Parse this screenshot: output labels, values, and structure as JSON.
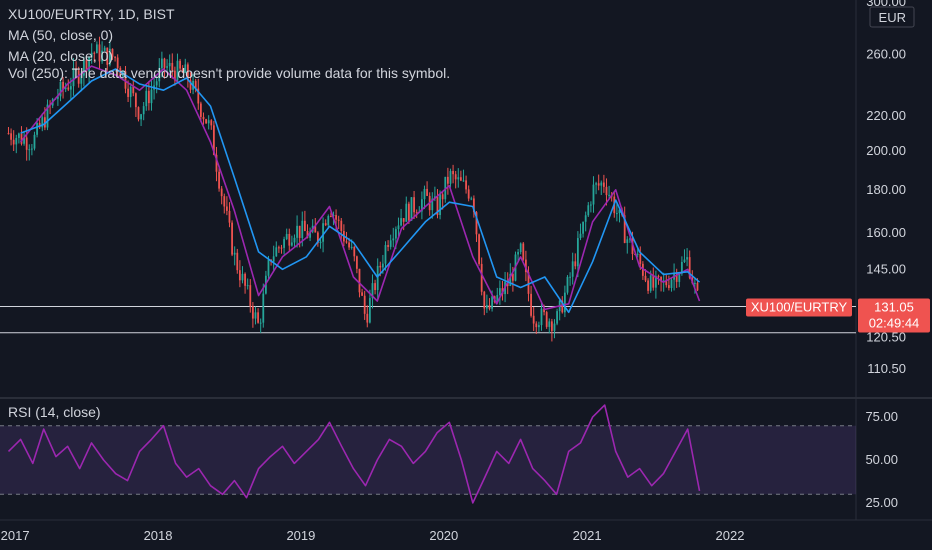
{
  "header": {
    "symbol_line": "XU100/EURTRY, 1D, BIST",
    "ma50": "MA (50, close, 0)",
    "ma20": "MA (20, close, 0)",
    "vol": "Vol (250)",
    "vol_note": "The data vendor doesn't provide volume data for this symbol.",
    "rsi_label": "RSI (14, close)"
  },
  "price_axis": {
    "currency": "EUR",
    "ticks": [
      "300.00",
      "260.00",
      "220.00",
      "200.00",
      "180.00",
      "160.00",
      "145.00",
      "120.50",
      "110.50"
    ],
    "tag_symbol": "XU100/EURTRY",
    "tag_price": "131.05",
    "tag_countdown": "02:49:44"
  },
  "rsi_axis": {
    "ticks": [
      "75.00",
      "50.00",
      "25.00"
    ]
  },
  "time_axis": {
    "ticks": [
      "2017",
      "2018",
      "2019",
      "2020",
      "2021",
      "2022"
    ]
  },
  "colors": {
    "background": "#131722",
    "up": "#26a69a",
    "down": "#ef5350",
    "ma50": "#2196f3",
    "ma20": "#9c27b0",
    "rsi": "#9c27b0",
    "rsi_band": "#7e57c2",
    "tag": "#ef5350"
  },
  "chart_data": {
    "type": "line",
    "title": "XU100/EURTRY, 1D, BIST",
    "y_scale": "log",
    "ylim": [
      103,
      300
    ],
    "horizontal_lines": [
      131.05,
      122
    ],
    "series": [
      {
        "name": "XU100/EURTRY",
        "style": "candles",
        "x": [
          "2016-12",
          "2017-02",
          "2017-04",
          "2017-06",
          "2017-07",
          "2017-09",
          "2017-11",
          "2018-01",
          "2018-03",
          "2018-05",
          "2018-06",
          "2018-07",
          "2018-09",
          "2018-10",
          "2018-12",
          "2019-02",
          "2019-03",
          "2019-05",
          "2019-06",
          "2019-08",
          "2019-09",
          "2019-11",
          "2019-12",
          "2020-01",
          "2020-03",
          "2020-04",
          "2020-06",
          "2020-07",
          "2020-08",
          "2020-10",
          "2020-11",
          "2020-12",
          "2021-01",
          "2021-02",
          "2021-04",
          "2021-06",
          "2021-07",
          "2021-09",
          "2021-10"
        ],
        "values": [
          210,
          205,
          232,
          248,
          262,
          258,
          222,
          252,
          246,
          212,
          176,
          150,
          124,
          150,
          162,
          158,
          173,
          150,
          127,
          160,
          168,
          176,
          171,
          187,
          178,
          128,
          140,
          152,
          128,
          126,
          140,
          158,
          180,
          184,
          157,
          138,
          139,
          149,
          131
        ]
      },
      {
        "name": "MA (50, close, 0)",
        "x": [
          "2017-01",
          "2017-03",
          "2017-05",
          "2017-07",
          "2017-09",
          "2017-11",
          "2018-01",
          "2018-03",
          "2018-05",
          "2018-07",
          "2018-09",
          "2018-11",
          "2019-01",
          "2019-03",
          "2019-05",
          "2019-07",
          "2019-09",
          "2019-11",
          "2020-01",
          "2020-03",
          "2020-05",
          "2020-07",
          "2020-09",
          "2020-11",
          "2021-01",
          "2021-03",
          "2021-05",
          "2021-07",
          "2021-09",
          "2021-10"
        ],
        "values": [
          210,
          215,
          228,
          242,
          250,
          240,
          236,
          244,
          226,
          186,
          152,
          145,
          150,
          163,
          156,
          142,
          153,
          165,
          174,
          172,
          142,
          138,
          142,
          129,
          148,
          175,
          152,
          143,
          144,
          140
        ]
      },
      {
        "name": "MA (20, close, 0)",
        "x": [
          "2017-01",
          "2017-03",
          "2017-05",
          "2017-07",
          "2017-09",
          "2017-11",
          "2018-01",
          "2018-03",
          "2018-05",
          "2018-07",
          "2018-09",
          "2018-11",
          "2019-01",
          "2019-03",
          "2019-05",
          "2019-07",
          "2019-09",
          "2019-11",
          "2020-01",
          "2020-03",
          "2020-05",
          "2020-07",
          "2020-09",
          "2020-11",
          "2021-01",
          "2021-03",
          "2021-05",
          "2021-07",
          "2021-09",
          "2021-10"
        ],
        "values": [
          205,
          222,
          240,
          252,
          246,
          236,
          250,
          236,
          205,
          170,
          135,
          150,
          158,
          172,
          142,
          133,
          162,
          172,
          182,
          150,
          132,
          150,
          130,
          132,
          165,
          180,
          146,
          140,
          145,
          133
        ]
      }
    ],
    "rsi": {
      "name": "RSI (14, close)",
      "ylim": [
        15,
        85
      ],
      "band": [
        30,
        70
      ],
      "x": [
        "2016-12",
        "2017-01",
        "2017-02",
        "2017-03",
        "2017-04",
        "2017-05",
        "2017-06",
        "2017-07",
        "2017-08",
        "2017-09",
        "2017-10",
        "2017-11",
        "2017-12",
        "2018-01",
        "2018-02",
        "2018-03",
        "2018-04",
        "2018-05",
        "2018-06",
        "2018-07",
        "2018-08",
        "2018-09",
        "2018-10",
        "2018-11",
        "2018-12",
        "2019-01",
        "2019-02",
        "2019-03",
        "2019-04",
        "2019-05",
        "2019-06",
        "2019-07",
        "2019-08",
        "2019-09",
        "2019-10",
        "2019-11",
        "2019-12",
        "2020-01",
        "2020-02",
        "2020-03",
        "2020-04",
        "2020-05",
        "2020-06",
        "2020-07",
        "2020-08",
        "2020-09",
        "2020-10",
        "2020-11",
        "2020-12",
        "2021-01",
        "2021-02",
        "2021-03",
        "2021-04",
        "2021-05",
        "2021-06",
        "2021-07",
        "2021-08",
        "2021-09",
        "2021-10"
      ],
      "values": [
        55,
        62,
        48,
        68,
        52,
        58,
        45,
        60,
        50,
        42,
        38,
        55,
        62,
        70,
        48,
        40,
        45,
        35,
        30,
        38,
        28,
        45,
        52,
        58,
        48,
        55,
        62,
        72,
        58,
        45,
        35,
        50,
        62,
        58,
        48,
        55,
        66,
        72,
        50,
        25,
        40,
        55,
        48,
        62,
        45,
        38,
        30,
        55,
        60,
        75,
        82,
        55,
        40,
        45,
        35,
        42,
        55,
        68,
        32
      ],
      "ticks": [
        75,
        50,
        25
      ]
    }
  }
}
